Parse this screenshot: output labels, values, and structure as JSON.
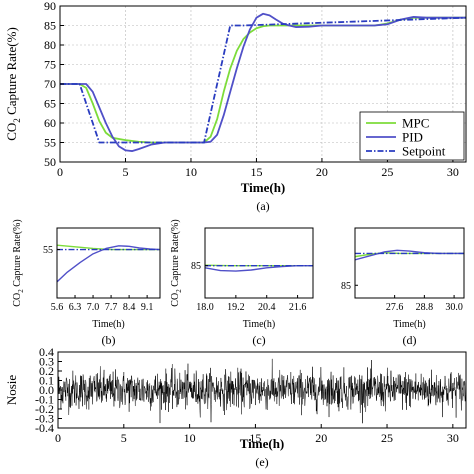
{
  "chart_data": [
    {
      "type": "line",
      "panel_label": "(a)",
      "xlabel": "Time(h)",
      "ylabel_main": "CO",
      "ylabel_sub": "2",
      "ylabel_rest": " Capture Rate(%)",
      "xlim": [
        0,
        31
      ],
      "ylim": [
        50,
        90
      ],
      "xticks": [
        0,
        5,
        10,
        15,
        20,
        25,
        30
      ],
      "yticks": [
        50,
        55,
        60,
        65,
        70,
        75,
        80,
        85,
        90
      ],
      "grid": true,
      "legend_position": "bottom-right",
      "series": [
        {
          "name": "MPC",
          "color": "#7ddc3a",
          "dash": "",
          "x": [
            0,
            1.5,
            2,
            2.5,
            3,
            3.5,
            4,
            5,
            6,
            7,
            8,
            9,
            10,
            11,
            11.5,
            12,
            12.5,
            13,
            13.5,
            14,
            14.5,
            15,
            15.5,
            16,
            16.5,
            17,
            18,
            19,
            20,
            22,
            24,
            25,
            26,
            27,
            28,
            30,
            31
          ],
          "y": [
            70,
            70,
            69,
            65,
            60.5,
            57.5,
            56.2,
            55.6,
            55.2,
            55,
            55,
            55,
            55,
            55,
            56.5,
            61,
            68,
            74,
            78.5,
            81.5,
            83.2,
            84.3,
            84.8,
            85,
            85,
            85,
            85,
            85,
            85,
            85,
            85,
            85.5,
            86.5,
            87,
            87,
            87,
            87
          ]
        },
        {
          "name": "PID",
          "color": "#5050c8",
          "dash": "",
          "x": [
            0,
            1.5,
            2,
            2.5,
            3,
            3.5,
            4,
            4.5,
            5,
            5.5,
            6,
            7,
            8,
            9,
            10,
            11,
            11.5,
            12,
            12.5,
            13,
            13.5,
            14,
            14.5,
            15,
            15.5,
            16,
            16.5,
            17,
            17.5,
            18,
            19,
            20,
            21,
            22,
            23,
            24,
            25,
            26,
            27,
            28,
            29,
            30,
            31
          ],
          "y": [
            70,
            70,
            70,
            68,
            64,
            60,
            56.5,
            54,
            53,
            52.8,
            53.3,
            54.5,
            55,
            55,
            55,
            55,
            55.2,
            57,
            62,
            68,
            74,
            79.5,
            84,
            87,
            88,
            87.6,
            86.5,
            85.5,
            85,
            84.6,
            84.7,
            85,
            85,
            85,
            85,
            85,
            85.3,
            86.5,
            87.2,
            87,
            87,
            87,
            87
          ]
        },
        {
          "name": "Setpoint",
          "color": "#2a3cc0",
          "dash": "6,2,1.5,2",
          "x": [
            0,
            1.5,
            3,
            10.5,
            11,
            13,
            14,
            31
          ],
          "y": [
            70,
            70,
            55,
            55,
            55,
            85,
            85,
            87
          ]
        }
      ]
    },
    {
      "type": "line",
      "panel_label": "(b)",
      "xlabel": "Time(h)",
      "ylabel_main": "CO",
      "ylabel_sub": "2",
      "ylabel_rest": " Capture Rate(%)",
      "xlim": [
        5.6,
        9.6
      ],
      "ylim": [
        50.5,
        57
      ],
      "xticks": [
        5.6,
        6.3,
        7.0,
        7.7,
        8.4,
        9.1
      ],
      "xticklabels": [
        "5.6",
        "6.3",
        "7.0",
        "7.7",
        "8.4",
        "9.1"
      ],
      "yticks": [
        55
      ],
      "grid": false,
      "series": [
        {
          "name": "",
          "color": "#7ddc3a",
          "dash": "",
          "x": [
            5.6,
            6.3,
            7.0,
            7.7,
            8.4,
            9.1,
            9.6
          ],
          "y": [
            55.4,
            55.25,
            55.1,
            55.0,
            55.0,
            55.0,
            55.0
          ]
        },
        {
          "name": "",
          "color": "#5050c8",
          "dash": "",
          "x": [
            5.6,
            6.0,
            6.5,
            7.0,
            7.5,
            8.0,
            8.4,
            8.8,
            9.2,
            9.6
          ],
          "y": [
            52.0,
            52.9,
            53.8,
            54.6,
            55.1,
            55.35,
            55.3,
            55.15,
            55.05,
            55.0
          ]
        },
        {
          "name": "",
          "color": "#2a3cc0",
          "dash": "6,2,1.5,2",
          "x": [
            5.6,
            9.6
          ],
          "y": [
            55,
            55
          ]
        }
      ]
    },
    {
      "type": "line",
      "panel_label": "(c)",
      "xlabel": "Time(h)",
      "ylabel_main": "CO",
      "ylabel_sub": "2",
      "ylabel_rest": " Capture Rate(%)",
      "xlim": [
        18.0,
        22.2
      ],
      "ylim": [
        82,
        88.5
      ],
      "xticks": [
        18.0,
        19.2,
        20.4,
        21.6
      ],
      "xticklabels": [
        "18.0",
        "19.2",
        "20.4",
        "21.6"
      ],
      "yticks": [
        85
      ],
      "grid": false,
      "series": [
        {
          "name": "",
          "color": "#7ddc3a",
          "dash": "",
          "x": [
            18.0,
            19.0,
            20.0,
            21.0,
            22.2
          ],
          "y": [
            85.05,
            85.0,
            85.0,
            85.0,
            85.0
          ]
        },
        {
          "name": "",
          "color": "#5050c8",
          "dash": "",
          "x": [
            18.0,
            18.6,
            19.2,
            19.8,
            20.4,
            21.0,
            21.6,
            22.2
          ],
          "y": [
            84.8,
            84.55,
            84.5,
            84.6,
            84.8,
            84.92,
            85.0,
            85.0
          ]
        },
        {
          "name": "",
          "color": "#2a3cc0",
          "dash": "6,2,1.5,2",
          "x": [
            18.0,
            22.2
          ],
          "y": [
            85,
            85
          ]
        }
      ]
    },
    {
      "type": "line",
      "panel_label": "(d)",
      "xlabel": "Time(h)",
      "ylabel_main": "",
      "ylabel_sub": "",
      "ylabel_rest": "",
      "xlim": [
        26.0,
        30.4
      ],
      "ylim": [
        84.2,
        88.6
      ],
      "xticks": [
        27.6,
        28.8,
        30.0
      ],
      "xticklabels": [
        "27.6",
        "28.8",
        "30.0"
      ],
      "yticks": [
        85
      ],
      "grid": false,
      "series": [
        {
          "name": "",
          "color": "#7ddc3a",
          "dash": "",
          "x": [
            26.0,
            26.6,
            27.2,
            27.8,
            28.4,
            29.0,
            29.6,
            30.4
          ],
          "y": [
            86.8,
            86.95,
            87.05,
            87.0,
            87.0,
            87.0,
            87.0,
            87.0
          ]
        },
        {
          "name": "",
          "color": "#5050c8",
          "dash": "",
          "x": [
            26.0,
            26.6,
            27.2,
            27.7,
            28.2,
            28.8,
            29.4,
            30.0,
            30.4
          ],
          "y": [
            86.6,
            86.85,
            87.1,
            87.2,
            87.15,
            87.05,
            87.0,
            87.0,
            87.0
          ]
        },
        {
          "name": "",
          "color": "#2a3cc0",
          "dash": "6,2,1.5,2",
          "x": [
            26.0,
            30.4
          ],
          "y": [
            87,
            87
          ]
        }
      ]
    },
    {
      "type": "line",
      "panel_label": "(e)",
      "xlabel": "Time(h)",
      "ylabel_main": "Nosie",
      "ylabel_sub": "",
      "ylabel_rest": "",
      "xlim": [
        0,
        31
      ],
      "ylim": [
        -0.4,
        0.4
      ],
      "xticks": [
        0,
        5,
        10,
        15,
        20,
        25,
        30
      ],
      "yticks": [
        -0.4,
        -0.3,
        -0.2,
        -0.1,
        0.0,
        0.1,
        0.2,
        0.3,
        0.4
      ],
      "yticklabels": [
        "-0.4",
        "-0.3",
        "-0.2",
        "-0.1",
        "0.0",
        "0.1",
        "0.2",
        "0.3",
        "0.4"
      ],
      "grid": false,
      "noise": {
        "color": "#000000",
        "points": 1400,
        "sigma": 0.1,
        "range": [
          -0.35,
          0.35
        ]
      }
    }
  ]
}
